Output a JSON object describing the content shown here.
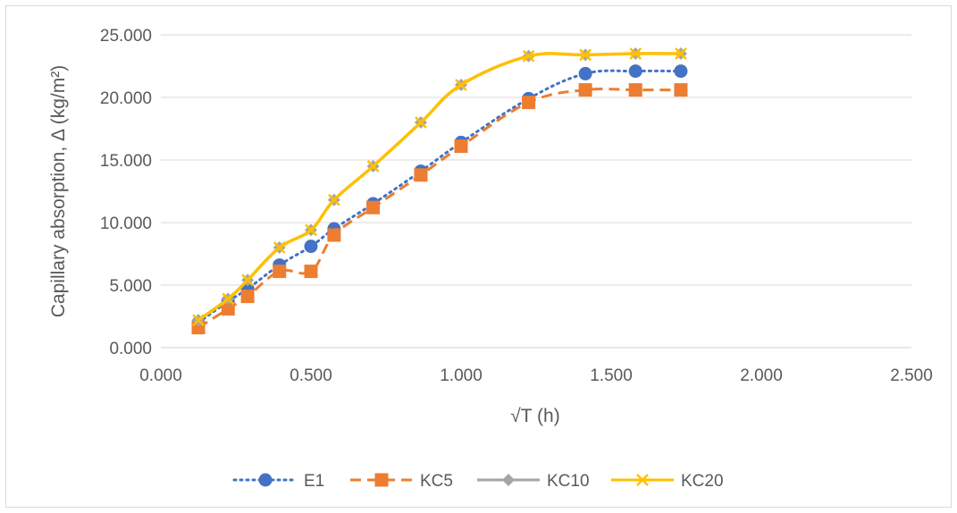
{
  "chart_data": {
    "type": "line",
    "xlabel": "√T (h)",
    "ylabel": "Capillary absorption, Δ (kg/m²)",
    "xlim": [
      0,
      2.5
    ],
    "ylim": [
      0,
      25
    ],
    "x_ticks": [
      0,
      0.5,
      1.0,
      1.5,
      2.0,
      2.5
    ],
    "y_ticks": [
      0,
      5,
      10,
      15,
      20,
      25
    ],
    "x_tick_labels": [
      "0.000",
      "0.500",
      "1.000",
      "1.500",
      "2.000",
      "2.500"
    ],
    "y_tick_labels": [
      "0.000",
      "5.000",
      "10.000",
      "15.000",
      "20.000",
      "25.000"
    ],
    "grid": "horizontal",
    "legend_position": "bottom",
    "x": [
      0.125,
      0.224,
      0.289,
      0.395,
      0.5,
      0.577,
      0.707,
      0.866,
      1.0,
      1.225,
      1.414,
      1.581,
      1.732
    ],
    "series": [
      {
        "name": "E1",
        "color": "#4472C4",
        "line_style": "dotted",
        "marker": "circle",
        "values": [
          2.0,
          3.7,
          4.7,
          6.6,
          8.1,
          9.5,
          11.5,
          14.1,
          16.4,
          19.9,
          21.9,
          22.1,
          22.1
        ]
      },
      {
        "name": "KC5",
        "color": "#ED7D31",
        "line_style": "dashed",
        "marker": "square",
        "values": [
          1.6,
          3.1,
          4.1,
          6.1,
          6.1,
          9.0,
          11.2,
          13.8,
          16.1,
          19.6,
          20.6,
          20.6,
          20.6
        ]
      },
      {
        "name": "KC10",
        "color": "#A5A5A5",
        "line_style": "solid",
        "marker": "diamond",
        "values": [
          2.2,
          3.9,
          5.4,
          8.0,
          9.4,
          11.8,
          14.5,
          18.0,
          21.0,
          23.3,
          23.4,
          23.5,
          23.5
        ]
      },
      {
        "name": "KC20",
        "color": "#FFC000",
        "line_style": "solid",
        "marker": "x",
        "values": [
          2.2,
          3.9,
          5.4,
          8.0,
          9.4,
          11.8,
          14.5,
          18.0,
          21.0,
          23.3,
          23.4,
          23.5,
          23.5
        ]
      }
    ]
  }
}
